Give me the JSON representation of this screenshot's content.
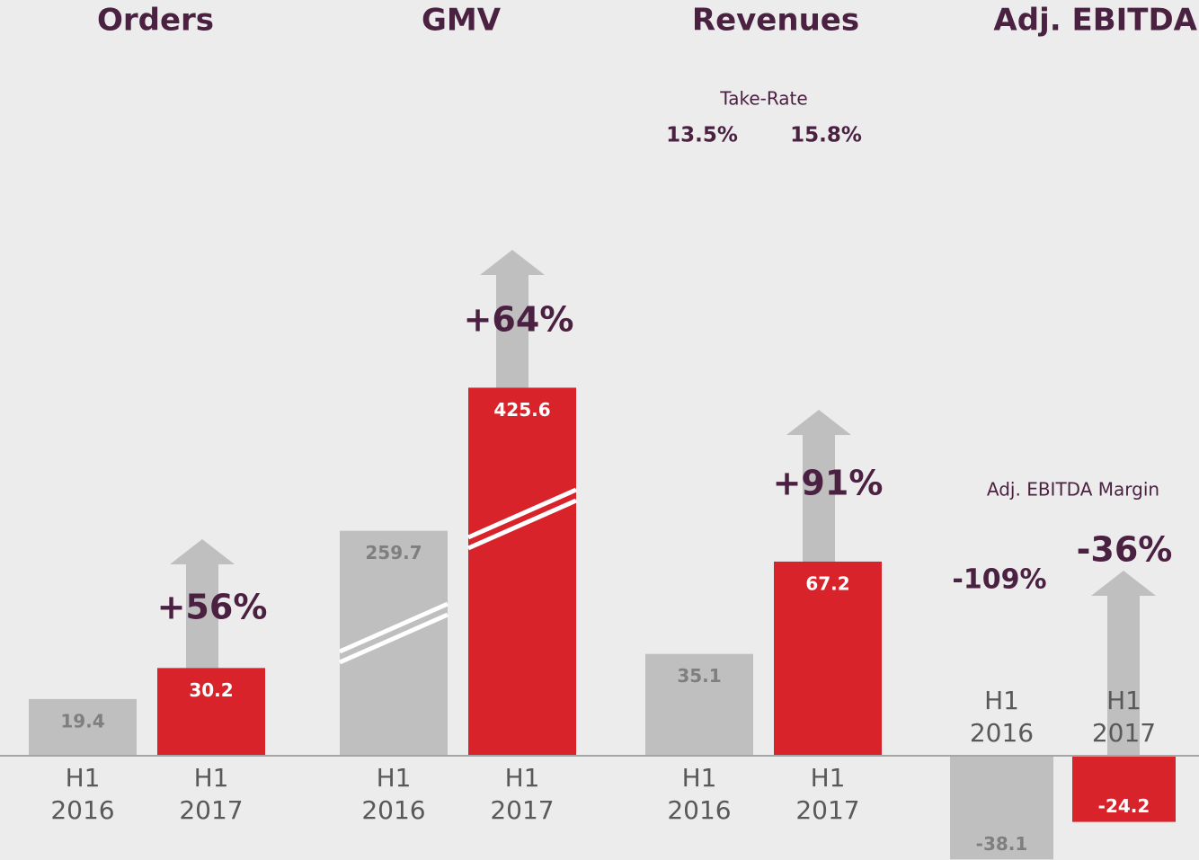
{
  "chart_data": [
    {
      "type": "bar",
      "title": "Orders",
      "categories": [
        "H1 2016",
        "H1 2017"
      ],
      "values": [
        19.4,
        30.2
      ],
      "colors": [
        "#bfbfbf",
        "#d9232a"
      ],
      "ylim": [
        0,
        150
      ],
      "growth": "+56%"
    },
    {
      "type": "bar",
      "title": "GMV",
      "categories": [
        "H1 2016",
        "H1 2017"
      ],
      "values": [
        259.7,
        425.6
      ],
      "colors": [
        "#bfbfbf",
        "#d9232a"
      ],
      "ylim": [
        0,
        500
      ],
      "growth": "+64%"
    },
    {
      "type": "bar",
      "title": "Revenues",
      "categories": [
        "H1 2016",
        "H1 2017"
      ],
      "values": [
        35.1,
        67.2
      ],
      "colors": [
        "#bfbfbf",
        "#d9232a"
      ],
      "ylim": [
        0,
        150
      ],
      "growth": "+91%",
      "annotations": {
        "label": "Take-Rate",
        "values": [
          "13.5%",
          "15.8%"
        ]
      }
    },
    {
      "type": "bar",
      "title": "Adj. EBITDA",
      "categories": [
        "H1 2016",
        "H1 2017"
      ],
      "values": [
        -38.1,
        -24.2
      ],
      "colors": [
        "#bfbfbf",
        "#d9232a"
      ],
      "ylim": [
        -40,
        160
      ],
      "annotations": {
        "label": "Adj. EBITDA Margin",
        "values": [
          "-109%",
          "-36%"
        ]
      }
    }
  ]
}
